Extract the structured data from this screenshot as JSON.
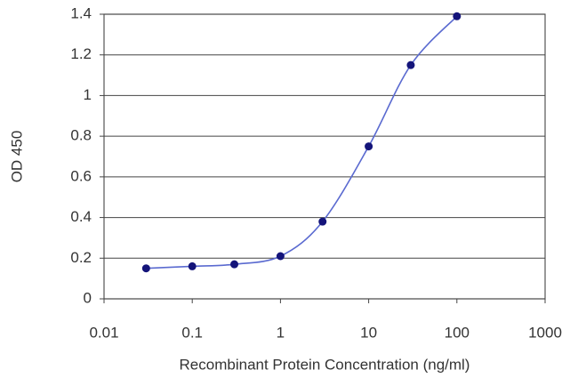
{
  "chart_data": {
    "type": "scatter",
    "x_label": "Recombinant Protein Concentration (ng/ml)",
    "y_label": "OD 450",
    "x": [
      0.03,
      0.1,
      0.3,
      1,
      3,
      10,
      30,
      100
    ],
    "values": [
      0.15,
      0.16,
      0.17,
      0.21,
      0.38,
      0.75,
      1.15,
      1.39
    ],
    "color": "#14147a",
    "line_color": "#5a6ad0",
    "xscale": "log",
    "xlim": [
      0.01,
      1000
    ],
    "xticks": [
      0.01,
      0.1,
      1,
      10,
      100,
      1000
    ],
    "ylim": [
      0,
      1.4
    ],
    "yticks": [
      0,
      0.2,
      0.4,
      0.6,
      0.8,
      1,
      1.2,
      1.4
    ],
    "grid": true
  }
}
